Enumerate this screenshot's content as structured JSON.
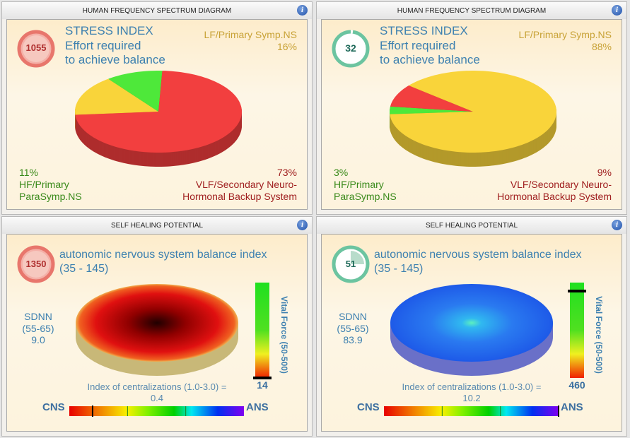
{
  "panels_top": [
    {
      "title": "HUMAN FREQUENCY SPECTRUM DIAGRAM",
      "badge_value": "1055",
      "badge_color": "#e8766c",
      "heading": "STRESS INDEX",
      "line1": "Effort required",
      "line2": "to achieve balance",
      "lf": {
        "label": "LF/Primary Symp.NS",
        "pct": "16%"
      },
      "hf": {
        "pct": "11%",
        "label1": "HF/Primary",
        "label2": "ParaSymp.NS"
      },
      "vlf": {
        "pct": "73%",
        "label1": "VLF/Secondary Neuro-",
        "label2": "Hormonal Backup System"
      },
      "chart_data": {
        "type": "pie",
        "slices": [
          {
            "name": "LF/Primary Symp.NS",
            "value": 16,
            "color": "#f9d43a"
          },
          {
            "name": "HF/Primary ParaSymp.NS",
            "value": 11,
            "color": "#4ee83a"
          },
          {
            "name": "VLF/Secondary Neuro-Hormonal Backup System",
            "value": 73,
            "color": "#f23f3f"
          }
        ]
      }
    },
    {
      "title": "HUMAN FREQUENCY SPECTRUM DIAGRAM",
      "badge_value": "32",
      "badge_color": "#6cc4a0",
      "heading": "STRESS INDEX",
      "line1": "Effort required",
      "line2": "to achieve balance",
      "lf": {
        "label": "LF/Primary Symp.NS",
        "pct": "88%"
      },
      "hf": {
        "pct": "3%",
        "label1": "HF/Primary",
        "label2": "ParaSymp.NS"
      },
      "vlf": {
        "pct": "9%",
        "label1": "VLF/Secondary Neuro-",
        "label2": "Hormonal Backup System"
      },
      "chart_data": {
        "type": "pie",
        "slices": [
          {
            "name": "LF/Primary Symp.NS",
            "value": 88,
            "color": "#f9d43a"
          },
          {
            "name": "HF/Primary ParaSymp.NS",
            "value": 3,
            "color": "#4ee83a"
          },
          {
            "name": "VLF/Secondary Neuro-Hormonal Backup System",
            "value": 9,
            "color": "#f23f3f"
          }
        ]
      }
    }
  ],
  "panels_bottom": [
    {
      "title": "SELF HEALING POTENTIAL",
      "badge_value": "1350",
      "badge_color": "#e8766c",
      "heading": "autonomic nervous system balance index",
      "range": "(35 - 145)",
      "sdnn": {
        "label": "SDNN",
        "range": "(55-65)",
        "value": "9.0"
      },
      "disc_color": "red",
      "vital": {
        "label": "Vital Force (50-500)",
        "value": "14",
        "min": 50,
        "max": 500
      },
      "centralization": {
        "label": "Index of centralizations (1.0-3.0) =",
        "value": "0.4",
        "left": "CNS",
        "right": "ANS",
        "scale_max": 3
      }
    },
    {
      "title": "SELF HEALING POTENTIAL",
      "badge_value": "51",
      "badge_color": "#6cc4a0",
      "heading": "autonomic nervous system balance index",
      "range": "(35 - 145)",
      "sdnn": {
        "label": "SDNN",
        "range": "(55-65)",
        "value": "83.9"
      },
      "disc_color": "blue",
      "vital": {
        "label": "Vital Force (50-500)",
        "value": "460",
        "min": 50,
        "max": 500
      },
      "centralization": {
        "label": "Index of centralizations (1.0-3.0) =",
        "value": "10.2",
        "left": "CNS",
        "right": "ANS",
        "scale_max": 3
      }
    }
  ]
}
